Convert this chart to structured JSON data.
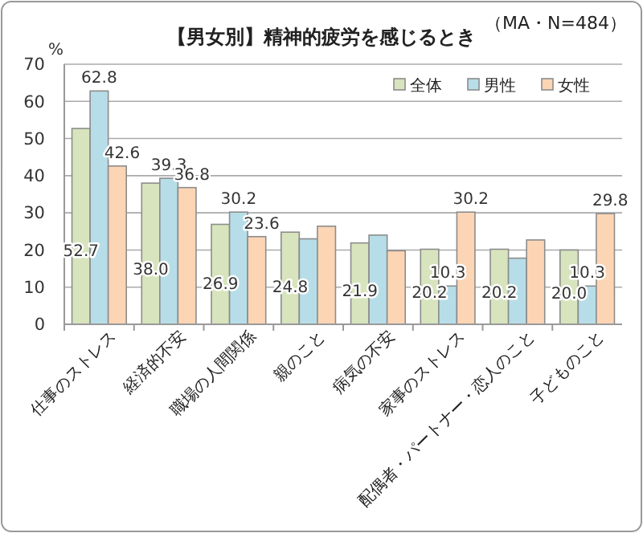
{
  "chart_data": {
    "type": "bar",
    "title": "【男女別】精神的疲労を感じるとき",
    "ylabel": "%",
    "annotations": [
      "（MA・N=484）"
    ],
    "categories": [
      "仕事のストレス",
      "経済的不安",
      "職場の人間関係",
      "親のこと",
      "病気の不安",
      "家事のストレス",
      "配偶者・パートナー・恋人のこと",
      "子どものこと"
    ],
    "series": [
      {
        "name": "全体",
        "color": "#d7e4bd",
        "values": [
          52.7,
          38.0,
          26.9,
          24.8,
          21.9,
          20.2,
          20.2,
          20.0
        ],
        "value_labels": [
          "52.7",
          "38.0",
          "26.9",
          "24.8",
          "21.9",
          "20.2",
          "20.2",
          "20.0"
        ]
      },
      {
        "name": "男性",
        "color": "#b7dee8",
        "values": [
          62.8,
          39.3,
          30.2,
          23.0,
          24.0,
          10.3,
          17.8,
          10.3
        ],
        "value_labels": [
          "62.8",
          "39.3",
          "30.2",
          null,
          null,
          "10.3",
          null,
          "10.3"
        ]
      },
      {
        "name": "女性",
        "color": "#fcd5b5",
        "values": [
          42.6,
          36.8,
          23.6,
          26.4,
          19.8,
          30.2,
          22.7,
          29.8
        ],
        "value_labels": [
          "42.6",
          "36.8",
          "23.6",
          null,
          null,
          "30.2",
          null,
          "29.8"
        ]
      }
    ],
    "ylim": [
      0,
      70
    ],
    "yticks": [
      0,
      10,
      20,
      30,
      40,
      50,
      60,
      70
    ],
    "grid": "y",
    "legend": "top right"
  }
}
